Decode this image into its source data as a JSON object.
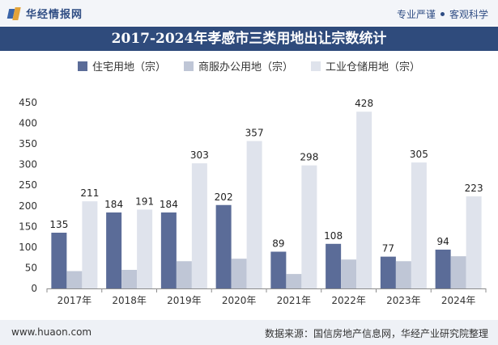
{
  "brand": {
    "name": "华经情报网",
    "slogan_left": "专业严谨",
    "slogan_right": "客观科学"
  },
  "chart_data": {
    "type": "bar",
    "title": "2017-2024年孝感市三类用地出让宗数统计",
    "categories": [
      "2017年",
      "2018年",
      "2019年",
      "2020年",
      "2021年",
      "2022年",
      "2023年",
      "2024年"
    ],
    "series": [
      {
        "name": "住宅用地（宗）",
        "color": "#5b6c98",
        "values": [
          135,
          184,
          184,
          202,
          89,
          108,
          77,
          94
        ],
        "labeled": true
      },
      {
        "name": "商服办公用地（宗）",
        "color": "#bfc6d6",
        "values": [
          42,
          45,
          66,
          72,
          35,
          70,
          66,
          78
        ],
        "labeled": false
      },
      {
        "name": "工业仓储用地（宗）",
        "color": "#dfe3ec",
        "values": [
          211,
          191,
          303,
          357,
          298,
          428,
          305,
          223
        ],
        "labeled": true
      }
    ],
    "ylim": [
      0,
      450
    ],
    "yticks": [
      0,
      50,
      100,
      150,
      200,
      250,
      300,
      350,
      400,
      450
    ],
    "grid": false,
    "legend_position": "top"
  },
  "footer": {
    "url": "www.huaon.com",
    "source": "数据来源：国信房地产信息网，华经产业研究院整理"
  }
}
